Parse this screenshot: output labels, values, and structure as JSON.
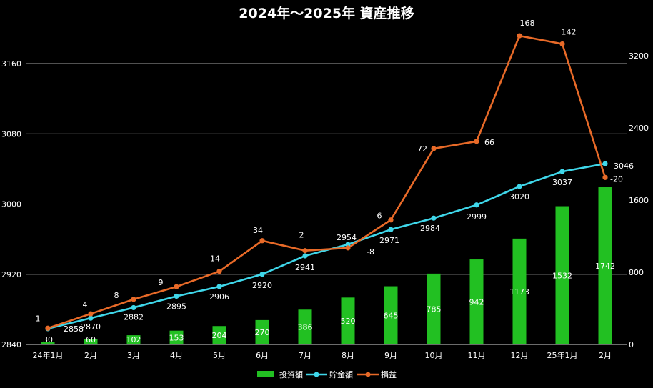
{
  "chart_data": {
    "type": "bar",
    "title": "2024年～2025年 資産推移",
    "categories": [
      "24年1月",
      "2月",
      "3月",
      "4月",
      "5月",
      "6月",
      "7月",
      "8月",
      "9月",
      "10月",
      "11月",
      "12月",
      "25年1月",
      "2月"
    ],
    "y_left": {
      "ylim": [
        2840,
        3200
      ],
      "ticks": [
        2840,
        2920,
        3000,
        3080,
        3160
      ]
    },
    "y_right": {
      "ylim": [
        0,
        3500
      ],
      "ticks": [
        0,
        800,
        1600,
        2400,
        3200
      ]
    },
    "grid": true,
    "legend_position": "bottom",
    "series": [
      {
        "name": "投資額",
        "kind": "bar",
        "axis": "right",
        "color": "#22c022",
        "values": [
          30,
          60,
          102,
          153,
          204,
          270,
          386,
          520,
          645,
          785,
          942,
          1173,
          1532,
          1742
        ]
      },
      {
        "name": "貯金額",
        "kind": "line",
        "axis": "left",
        "color": "#3fd7ea",
        "values": [
          2858,
          2870,
          2882,
          2895,
          2906,
          2920,
          2941,
          2954,
          2971,
          2984,
          2999,
          3020,
          3037,
          3046
        ]
      },
      {
        "name": "損益",
        "kind": "line",
        "axis": "right",
        "color": "#e86a28",
        "values": [
          1,
          4,
          8,
          9,
          14,
          34,
          2,
          -8,
          6,
          72,
          66,
          168,
          142,
          -20
        ],
        "plot_values": [
          180,
          340,
          500,
          640,
          810,
          1150,
          1040,
          1070,
          1380,
          2170,
          2250,
          3420,
          3330,
          1850
        ]
      }
    ]
  }
}
